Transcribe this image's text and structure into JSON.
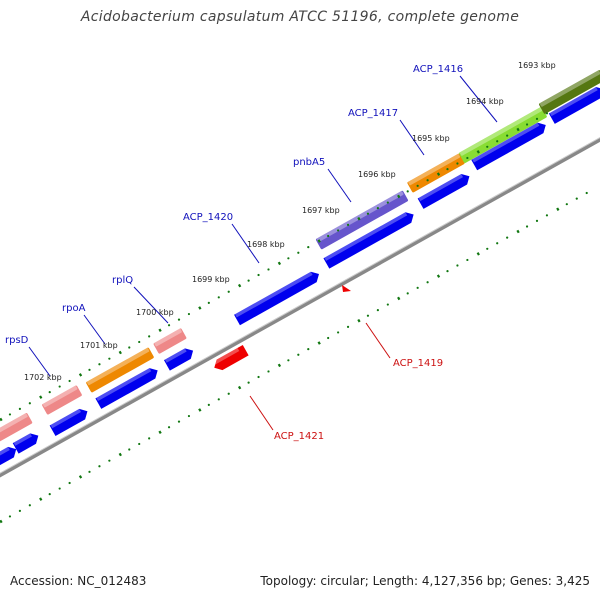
{
  "title": "Acidobacterium capsulatum ATCC 51196, complete genome",
  "footer": {
    "accession_label": "Accession: NC_012483",
    "stats_label": "Topology: circular; Length: 4,127,356 bp; Genes: 3,425"
  },
  "colors": {
    "forward_gene": "#0000ee",
    "reverse_gene": "#ee0000",
    "backbone": "#888888",
    "ticks": "#117711",
    "label_forward": "#1111bb",
    "label_reverse": "#cc1111"
  },
  "ticks": [
    {
      "label": "1693 kbp"
    },
    {
      "label": "1694 kbp"
    },
    {
      "label": "1695 kbp"
    },
    {
      "label": "1696 kbp"
    },
    {
      "label": "1697 kbp"
    },
    {
      "label": "1698 kbp"
    },
    {
      "label": "1699 kbp"
    },
    {
      "label": "1700 kbp"
    },
    {
      "label": "1701 kbp"
    },
    {
      "label": "1702 kbp"
    }
  ],
  "gene_labels": [
    {
      "name": "ACP_1416",
      "strand": "forward"
    },
    {
      "name": "ACP_1417",
      "strand": "forward"
    },
    {
      "name": "pnbA5",
      "strand": "forward"
    },
    {
      "name": "ACP_1420",
      "strand": "forward"
    },
    {
      "name": "rplQ",
      "strand": "forward"
    },
    {
      "name": "rpoA",
      "strand": "forward"
    },
    {
      "name": "rpsD",
      "strand": "forward"
    },
    {
      "name": "ACP_1419",
      "strand": "reverse"
    },
    {
      "name": "ACP_1421",
      "strand": "reverse"
    }
  ]
}
